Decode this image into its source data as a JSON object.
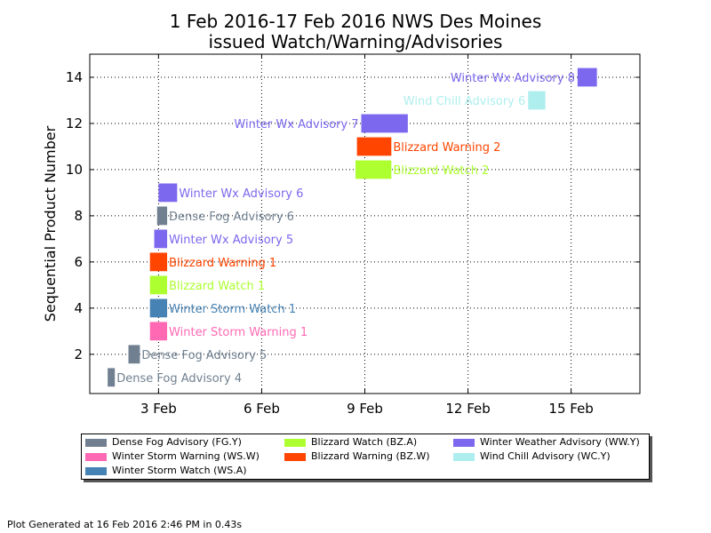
{
  "chart_data": {
    "type": "timeline",
    "title": [
      "1 Feb 2016-17 Feb 2016 NWS Des Moines",
      "issued Watch/Warning/Advisories"
    ],
    "ylabel": "Sequential Product Number",
    "xlabel": "",
    "x_ticks": [
      {
        "day": 3,
        "label": "3 Feb"
      },
      {
        "day": 6,
        "label": "6 Feb"
      },
      {
        "day": 9,
        "label": "9 Feb"
      },
      {
        "day": 12,
        "label": "12 Feb"
      },
      {
        "day": 15,
        "label": "15 Feb"
      }
    ],
    "y_ticks": [
      2,
      4,
      6,
      8,
      10,
      12,
      14
    ],
    "xlim": [
      "2016-02-01",
      "2016-02-17"
    ],
    "ylim": [
      0.3,
      15
    ],
    "grid": true,
    "events": [
      {
        "label": "Dense Fog Advisory 4",
        "y": 1,
        "start": "2016-02-01 12:30",
        "end": "2016-02-01 17:30",
        "color": "#708090",
        "text_side": "right"
      },
      {
        "label": "Dense Fog Advisory 5",
        "y": 2,
        "start": "2016-02-02 03:00",
        "end": "2016-02-02 11:00",
        "color": "#708090",
        "text_side": "right"
      },
      {
        "label": "Winter Storm Warning 1",
        "y": 3,
        "start": "2016-02-02 18:00",
        "end": "2016-02-03 06:00",
        "color": "#FF69B4",
        "text_side": "right"
      },
      {
        "label": "Winter Storm Watch 1",
        "y": 4,
        "start": "2016-02-02 18:00",
        "end": "2016-02-03 06:00",
        "color": "#4682B4",
        "text_side": "right"
      },
      {
        "label": "Blizzard Watch 1",
        "y": 5,
        "start": "2016-02-02 18:00",
        "end": "2016-02-03 06:00",
        "color": "#ADFF2F",
        "text_side": "right"
      },
      {
        "label": "Blizzard Warning 1",
        "y": 6,
        "start": "2016-02-02 18:00",
        "end": "2016-02-03 06:00",
        "color": "#FF4500",
        "text_side": "right"
      },
      {
        "label": "Winter Wx Advisory 5",
        "y": 7,
        "start": "2016-02-02 21:00",
        "end": "2016-02-03 06:00",
        "color": "#7B68EE",
        "text_side": "right"
      },
      {
        "label": "Dense Fog Advisory 6",
        "y": 8,
        "start": "2016-02-02 23:00",
        "end": "2016-02-03 06:00",
        "color": "#708090",
        "text_side": "right"
      },
      {
        "label": "Winter Wx Advisory 6",
        "y": 9,
        "start": "2016-02-03 00:00",
        "end": "2016-02-03 13:00",
        "color": "#7B68EE",
        "text_side": "right"
      },
      {
        "label": "Blizzard Watch 2",
        "y": 10,
        "start": "2016-02-08 17:30",
        "end": "2016-02-09 18:30",
        "color": "#ADFF2F",
        "text_side": "right"
      },
      {
        "label": "Blizzard Warning 2",
        "y": 11,
        "start": "2016-02-08 18:30",
        "end": "2016-02-09 18:30",
        "color": "#FF4500",
        "text_side": "right"
      },
      {
        "label": "Winter Wx Advisory 7",
        "y": 12,
        "start": "2016-02-08 21:30",
        "end": "2016-02-10 06:00",
        "color": "#7B68EE",
        "text_side": "left"
      },
      {
        "label": "Wind Chill Advisory 6",
        "y": 13,
        "start": "2016-02-13 18:00",
        "end": "2016-02-14 06:00",
        "color": "#AFEEEE",
        "text_side": "left"
      },
      {
        "label": "Winter Wx Advisory 8",
        "y": 14,
        "start": "2016-02-15 04:30",
        "end": "2016-02-15 18:00",
        "color": "#7B68EE",
        "text_side": "left"
      }
    ],
    "legend": [
      {
        "label": "Dense Fog Advisory (FG.Y)",
        "color": "#708090"
      },
      {
        "label": "Winter Storm Warning (WS.W)",
        "color": "#FF69B4"
      },
      {
        "label": "Winter Storm Watch (WS.A)",
        "color": "#4682B4"
      },
      {
        "label": "Blizzard Watch (BZ.A)",
        "color": "#ADFF2F"
      },
      {
        "label": "Blizzard Warning (BZ.W)",
        "color": "#FF4500"
      },
      {
        "label": "Winter Weather Advisory (WW.Y)",
        "color": "#7B68EE"
      },
      {
        "label": "Wind Chill Advisory (WC.Y)",
        "color": "#AFEEEE"
      }
    ],
    "legend_placement": "below"
  },
  "footer": "Plot Generated at 16 Feb 2016 2:46 PM in 0.43s"
}
